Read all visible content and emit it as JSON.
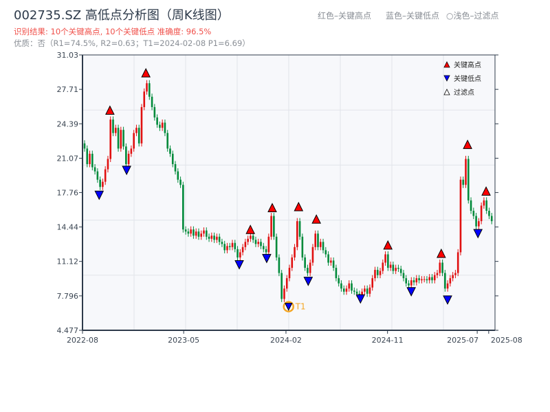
{
  "header": {
    "title": "002735.SZ 高低点分析图（周K线图）",
    "hint_red": "红色–关键高点",
    "hint_blue": "蓝色–关键低点",
    "hint_light": "○浅色–过滤点",
    "result": "识别结果: 10个关键高点, 10个关键低点  准确度: 96.5%",
    "quality": "优质：否（R1=74.5%, R2=0.63；T1=2024-02-08 P1=6.69）"
  },
  "chart_data": {
    "type": "candlestick",
    "frequency": "weekly",
    "xlim": [
      "2022-08-01",
      "2025-08-18"
    ],
    "ylim": [
      4.477,
      31.03
    ],
    "y_ticks": [
      "4.477",
      "7.796",
      "11.12",
      "14.44",
      "17.76",
      "21.07",
      "24.39",
      "27.71",
      "31.03"
    ],
    "x_ticks": [
      {
        "label": "2022-08",
        "date": "2022-08-01"
      },
      {
        "label": "2023-05",
        "date": "2023-05-01"
      },
      {
        "label": "2024-02",
        "date": "2024-02-01"
      },
      {
        "label": "2024-11",
        "date": "2024-11-01"
      },
      {
        "label": "2025-07",
        "date": "2025-07-01"
      },
      {
        "label": "2025-08",
        "date": "2025-08-01"
      }
    ],
    "grid": true,
    "closes": [
      22,
      20.5,
      21.5,
      20.2,
      19.8,
      19.0,
      18.3,
      18.8,
      20,
      21,
      24.8,
      23.5,
      24,
      22,
      23.8,
      22.2,
      20.5,
      21.5,
      22,
      23.5,
      24,
      22.5,
      26,
      27.5,
      28.3,
      27,
      26,
      25,
      24.3,
      24,
      24.5,
      23.5,
      22,
      21.5,
      20.5,
      19.8,
      19,
      18.5,
      14.2,
      14,
      13.8,
      14.2,
      13.6,
      14,
      13.5,
      13.8,
      14.1,
      13.5,
      13.3,
      13.6,
      13.2,
      13.5,
      13,
      12.8,
      12.2,
      12.6,
      12.5,
      12.9,
      12.3,
      11.5,
      12,
      12.5,
      13,
      13.3,
      13.6,
      13.2,
      12.8,
      13,
      12.6,
      12.3,
      12,
      13.5,
      15.5,
      13.5,
      11.5,
      10,
      7.5,
      8.5,
      9.5,
      10.5,
      11.5,
      12.5,
      15,
      13.5,
      11.5,
      10.5,
      10,
      11,
      12.5,
      13.8,
      12.5,
      13,
      12.2,
      11.8,
      11,
      11.2,
      10.5,
      9.5,
      9,
      8.5,
      8.2,
      8.5,
      9,
      8.3,
      8.2,
      8,
      7.9,
      8.2,
      8.5,
      8,
      8.6,
      9.5,
      10.3,
      9.8,
      10.2,
      11,
      11.8,
      10.5,
      10.8,
      10.2,
      10.5,
      10.4,
      10,
      9.5,
      9,
      8.8,
      9.3,
      9.1,
      9.5,
      9.3,
      9.4,
      9.4,
      9.3,
      9.6,
      9.3,
      9.8,
      10,
      11,
      10,
      8.5,
      9,
      9.5,
      9.8,
      10,
      12,
      19,
      18.5,
      21,
      17,
      16,
      15.5,
      14.5,
      15,
      16.5,
      17,
      16,
      15.5,
      15
    ],
    "key_highs": [
      {
        "date": "2022-10-14",
        "price": 25.3
      },
      {
        "date": "2023-01-19",
        "price": 28.9
      },
      {
        "date": "2023-10-28",
        "price": 13.8
      },
      {
        "date": "2023-12-26",
        "price": 15.9
      },
      {
        "date": "2024-03-06",
        "price": 16.0
      },
      {
        "date": "2024-04-23",
        "price": 14.8
      },
      {
        "date": "2024-11-02",
        "price": 12.3
      },
      {
        "date": "2025-03-26",
        "price": 11.5
      },
      {
        "date": "2025-06-05",
        "price": 22.0
      },
      {
        "date": "2025-07-25",
        "price": 17.5
      }
    ],
    "key_lows": [
      {
        "date": "2022-09-15",
        "price": 17.9
      },
      {
        "date": "2022-11-28",
        "price": 20.3
      },
      {
        "date": "2023-09-28",
        "price": 11.2
      },
      {
        "date": "2023-12-11",
        "price": 11.8
      },
      {
        "date": "2024-02-08",
        "price": 6.69,
        "label": "T1"
      },
      {
        "date": "2024-04-01",
        "price": 9.6
      },
      {
        "date": "2024-08-20",
        "price": 7.9
      },
      {
        "date": "2025-01-04",
        "price": 8.6
      },
      {
        "date": "2025-04-12",
        "price": 7.8
      },
      {
        "date": "2025-07-03",
        "price": 14.2
      }
    ],
    "legend": {
      "position": "top-right",
      "high": "关键高点",
      "low": "关键低点",
      "filtered": "过滤点"
    },
    "colors": {
      "up": "#e01010",
      "down": "#008a3a",
      "high_marker": "#ff0000",
      "low_marker": "#0000ff",
      "t1": "#f5a623"
    }
  }
}
